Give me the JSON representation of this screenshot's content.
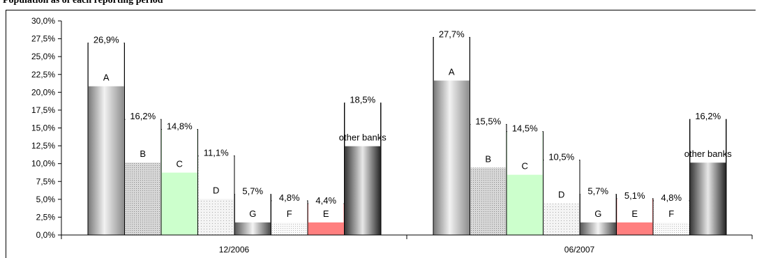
{
  "header": {
    "partial_text": "Population as of each reporting period"
  },
  "chart_data": {
    "type": "bar",
    "categories": [
      "12/2006",
      "06/2007"
    ],
    "ylim": [
      0,
      30
    ],
    "y_ticks": [
      "0,0%",
      "2,5%",
      "5,0%",
      "7,5%",
      "10,0%",
      "12,5%",
      "15,0%",
      "17,5%",
      "20,0%",
      "22,5%",
      "25,0%",
      "27,5%",
      "30,0%"
    ],
    "grid": false,
    "groups": [
      {
        "category": "12/2006",
        "bars": [
          {
            "name": "A",
            "value": 26.9,
            "label": "26,9%",
            "fill": "grad"
          },
          {
            "name": "B",
            "value": 16.2,
            "label": "16,2%",
            "fill": "dots"
          },
          {
            "name": "C",
            "value": 14.8,
            "label": "14,8%",
            "fill": "green"
          },
          {
            "name": "D",
            "value": 11.1,
            "label": "11,1%",
            "fill": "lightdots"
          },
          {
            "name": "G",
            "value": 5.7,
            "label": "5,7%",
            "fill": "grad2"
          },
          {
            "name": "F",
            "value": 4.8,
            "label": "4,8%",
            "fill": "finedots"
          },
          {
            "name": "E",
            "value": 4.4,
            "label": "4,4%",
            "fill": "red"
          },
          {
            "name": "other banks",
            "value": 18.5,
            "label": "18,5%",
            "fill": "grad3"
          }
        ]
      },
      {
        "category": "06/2007",
        "bars": [
          {
            "name": "A",
            "value": 27.7,
            "label": "27,7%",
            "fill": "grad"
          },
          {
            "name": "B",
            "value": 15.5,
            "label": "15,5%",
            "fill": "dots"
          },
          {
            "name": "C",
            "value": 14.5,
            "label": "14,5%",
            "fill": "green"
          },
          {
            "name": "D",
            "value": 10.5,
            "label": "10,5%",
            "fill": "lightdots"
          },
          {
            "name": "G",
            "value": 5.7,
            "label": "5,7%",
            "fill": "grad2"
          },
          {
            "name": "E",
            "value": 5.1,
            "label": "5,1%",
            "fill": "red"
          },
          {
            "name": "F",
            "value": 4.8,
            "label": "4,8%",
            "fill": "finedots"
          },
          {
            "name": "other banks",
            "value": 16.2,
            "label": "16,2%",
            "fill": "grad3"
          }
        ]
      }
    ],
    "colors": {
      "green": "#ccffcc",
      "red": "#ff7f7f",
      "axis": "#000000"
    }
  }
}
